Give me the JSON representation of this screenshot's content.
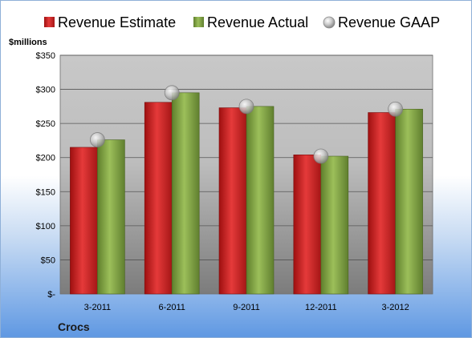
{
  "chart_data": {
    "type": "bar",
    "categories": [
      "3-2011",
      "6-2011",
      "9-2011",
      "12-2011",
      "3-2012"
    ],
    "series": [
      {
        "name": "Revenue Estimate",
        "kind": "bar",
        "color": "#e02b2b",
        "values": [
          215,
          281,
          273,
          204,
          266
        ]
      },
      {
        "name": "Revenue Actual",
        "kind": "bar",
        "color": "#8cb04a",
        "values": [
          226,
          295,
          275,
          202,
          271
        ]
      },
      {
        "name": "Revenue GAAP",
        "kind": "marker",
        "color": "#b8b8b8",
        "values": [
          226,
          295,
          275,
          202,
          271
        ]
      }
    ],
    "ylabel": "$millions",
    "ylim": [
      0,
      350
    ],
    "yticks": [
      0,
      50,
      100,
      150,
      200,
      250,
      300,
      350
    ],
    "ytick_labels": [
      "$-",
      "$50",
      "$100",
      "$150",
      "$200",
      "$250",
      "$300",
      "$350"
    ],
    "grid": true,
    "legend_position": "top",
    "footer_label": "Crocs"
  }
}
